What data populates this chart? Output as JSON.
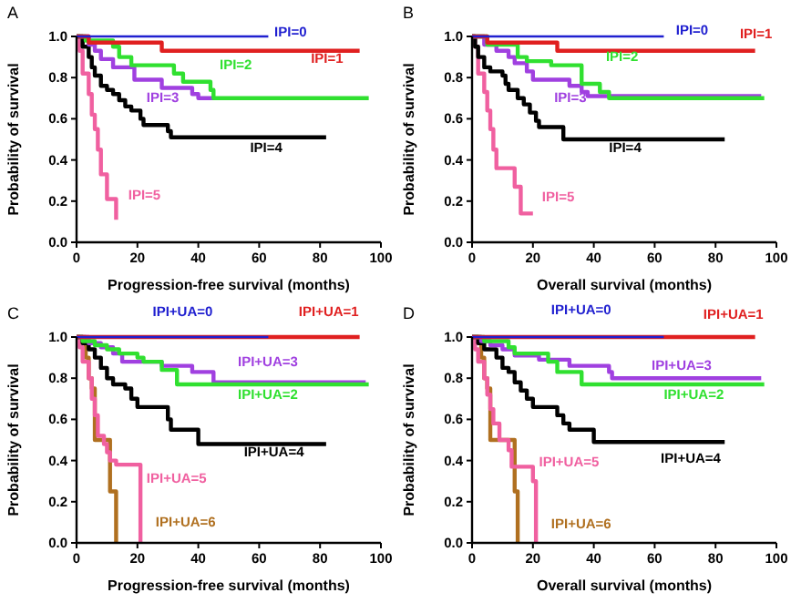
{
  "chart_data": [
    {
      "type": "step",
      "title": "A",
      "xlabel": "Progression-free survival (months)",
      "ylabel": "Probability of survival",
      "xlim": [
        0,
        100
      ],
      "ylim": [
        0,
        1
      ],
      "xticks": [
        0,
        20,
        40,
        60,
        80,
        100
      ],
      "yticks": [
        {
          "value": 0,
          "label": "0.0"
        },
        {
          "value": 0.2,
          "label": "0.2"
        },
        {
          "value": 0.4,
          "label": "0.4"
        },
        {
          "value": 0.6,
          "label": "0.6"
        },
        {
          "value": 0.8,
          "label": "0.8"
        },
        {
          "value": 1,
          "label": "1.0"
        }
      ],
      "series": [
        {
          "name": "IPI=0",
          "color": "#2020d0",
          "x": [
            0,
            63
          ],
          "values": [
            1,
            1
          ]
        },
        {
          "name": "IPI=1",
          "color": "#e02020",
          "x": [
            0,
            4,
            28,
            93
          ],
          "values": [
            1,
            0.97,
            0.93,
            0.93
          ]
        },
        {
          "name": "IPI=2",
          "color": "#30e030",
          "x": [
            0,
            3,
            12,
            14,
            18,
            32,
            35,
            44,
            45,
            96
          ],
          "values": [
            1,
            0.98,
            0.95,
            0.9,
            0.86,
            0.82,
            0.78,
            0.74,
            0.7,
            0.7
          ]
        },
        {
          "name": "IPI=3",
          "color": "#a040e0",
          "x": [
            0,
            4,
            6,
            8,
            12,
            19,
            28,
            38,
            40,
            45
          ],
          "values": [
            1,
            0.96,
            0.93,
            0.89,
            0.85,
            0.79,
            0.75,
            0.72,
            0.7,
            0.7
          ]
        },
        {
          "name": "IPI=4",
          "color": "#000000",
          "x": [
            0,
            2,
            4,
            5,
            6,
            8,
            10,
            12,
            14,
            16,
            18,
            21,
            22,
            30,
            31,
            82
          ],
          "values": [
            1,
            0.95,
            0.9,
            0.85,
            0.81,
            0.76,
            0.74,
            0.72,
            0.69,
            0.66,
            0.64,
            0.6,
            0.57,
            0.54,
            0.51,
            0.51
          ]
        },
        {
          "name": "IPI=5",
          "color": "#f060a0",
          "x": [
            0,
            1,
            2,
            4,
            5,
            6,
            7,
            8,
            10,
            13
          ],
          "values": [
            1,
            0.93,
            0.82,
            0.72,
            0.62,
            0.55,
            0.45,
            0.33,
            0.21,
            0.11
          ]
        }
      ]
    },
    {
      "type": "step",
      "title": "B",
      "xlabel": "Overall survival (months)",
      "ylabel": "Probability of survival",
      "xlim": [
        0,
        100
      ],
      "ylim": [
        0,
        1
      ],
      "xticks": [
        0,
        20,
        40,
        60,
        80,
        100
      ],
      "yticks": [
        {
          "value": 0,
          "label": "0.0"
        },
        {
          "value": 0.2,
          "label": "0.2"
        },
        {
          "value": 0.4,
          "label": "0.4"
        },
        {
          "value": 0.6,
          "label": "0.6"
        },
        {
          "value": 0.8,
          "label": "0.8"
        },
        {
          "value": 1,
          "label": "1.0"
        }
      ],
      "series": [
        {
          "name": "IPI=0",
          "color": "#2020d0",
          "x": [
            0,
            63
          ],
          "values": [
            1,
            1
          ]
        },
        {
          "name": "IPI=1",
          "color": "#e02020",
          "x": [
            0,
            5,
            28,
            93
          ],
          "values": [
            1,
            0.97,
            0.93,
            0.93
          ]
        },
        {
          "name": "IPI=2",
          "color": "#30e030",
          "x": [
            0,
            5,
            15,
            18,
            26,
            36,
            42,
            45,
            96
          ],
          "values": [
            1,
            0.96,
            0.9,
            0.88,
            0.86,
            0.77,
            0.73,
            0.7,
            0.7
          ]
        },
        {
          "name": "IPI=3",
          "color": "#a040e0",
          "x": [
            0,
            4,
            8,
            12,
            14,
            18,
            20,
            32,
            36,
            38,
            95
          ],
          "values": [
            1,
            0.96,
            0.93,
            0.9,
            0.87,
            0.83,
            0.79,
            0.76,
            0.73,
            0.71,
            0.71
          ]
        },
        {
          "name": "IPI=4",
          "color": "#000000",
          "x": [
            0,
            1,
            2,
            4,
            6,
            10,
            11,
            12,
            15,
            17,
            19,
            21,
            22,
            30,
            83
          ],
          "values": [
            1,
            0.95,
            0.9,
            0.85,
            0.83,
            0.81,
            0.77,
            0.74,
            0.7,
            0.67,
            0.63,
            0.59,
            0.56,
            0.5,
            0.5
          ]
        },
        {
          "name": "IPI=5",
          "color": "#f060a0",
          "x": [
            0,
            1,
            2,
            4,
            5,
            6,
            7,
            8,
            14,
            16,
            20
          ],
          "values": [
            1,
            0.95,
            0.82,
            0.73,
            0.64,
            0.55,
            0.45,
            0.36,
            0.27,
            0.14,
            0.14
          ]
        }
      ]
    },
    {
      "type": "step",
      "title": "C",
      "xlabel": "Progression-free survival (months)",
      "ylabel": "Probability of survival",
      "xlim": [
        0,
        100
      ],
      "ylim": [
        0,
        1
      ],
      "xticks": [
        0,
        20,
        40,
        60,
        80,
        100
      ],
      "yticks": [
        {
          "value": 0,
          "label": "0.0"
        },
        {
          "value": 0.2,
          "label": "0.2"
        },
        {
          "value": 0.4,
          "label": "0.4"
        },
        {
          "value": 0.6,
          "label": "0.6"
        },
        {
          "value": 0.8,
          "label": "0.8"
        },
        {
          "value": 1,
          "label": "1.0"
        }
      ],
      "series": [
        {
          "name": "IPI+UA=0",
          "color": "#2020d0",
          "x": [
            0,
            63
          ],
          "values": [
            1,
            1
          ]
        },
        {
          "name": "IPI+UA=1",
          "color": "#e02020",
          "x": [
            0,
            93
          ],
          "values": [
            1,
            1
          ]
        },
        {
          "name": "IPI+UA=2",
          "color": "#30e030",
          "x": [
            0,
            2,
            6,
            10,
            14,
            20,
            22,
            28,
            33,
            96
          ],
          "values": [
            1,
            0.98,
            0.96,
            0.94,
            0.92,
            0.9,
            0.88,
            0.84,
            0.77,
            0.77
          ]
        },
        {
          "name": "IPI+UA=3",
          "color": "#a040e0",
          "x": [
            0,
            4,
            8,
            12,
            15,
            28,
            38,
            45,
            95
          ],
          "values": [
            1,
            0.97,
            0.95,
            0.92,
            0.88,
            0.86,
            0.83,
            0.78,
            0.78
          ]
        },
        {
          "name": "IPI+UA=4",
          "color": "#000000",
          "x": [
            0,
            2,
            4,
            6,
            8,
            10,
            12,
            16,
            18,
            20,
            30,
            31,
            40,
            82
          ],
          "values": [
            1,
            0.97,
            0.94,
            0.9,
            0.85,
            0.8,
            0.77,
            0.75,
            0.7,
            0.66,
            0.6,
            0.55,
            0.48,
            0.48
          ]
        },
        {
          "name": "IPI+UA=5",
          "color": "#f060a0",
          "x": [
            0,
            1,
            2,
            4,
            5,
            6,
            7,
            9,
            10,
            11,
            13,
            21
          ],
          "values": [
            1,
            0.95,
            0.88,
            0.8,
            0.7,
            0.62,
            0.52,
            0.48,
            0.44,
            0.4,
            0.38,
            0
          ]
        },
        {
          "name": "IPI+UA=6",
          "color": "#b07020",
          "x": [
            0,
            3,
            4,
            5,
            6,
            11,
            13
          ],
          "values": [
            1,
            0.9,
            0.8,
            0.75,
            0.5,
            0.25,
            0
          ]
        }
      ]
    },
    {
      "type": "step",
      "title": "D",
      "xlabel": "Overall survival (months)",
      "ylabel": "Probability of survival",
      "xlim": [
        0,
        100
      ],
      "ylim": [
        0,
        1
      ],
      "xticks": [
        0,
        20,
        40,
        60,
        80,
        100
      ],
      "yticks": [
        {
          "value": 0,
          "label": "0.0"
        },
        {
          "value": 0.2,
          "label": "0.2"
        },
        {
          "value": 0.4,
          "label": "0.4"
        },
        {
          "value": 0.6,
          "label": "0.6"
        },
        {
          "value": 0.8,
          "label": "0.8"
        },
        {
          "value": 1,
          "label": "1.0"
        }
      ],
      "series": [
        {
          "name": "IPI+UA=0",
          "color": "#2020d0",
          "x": [
            0,
            63
          ],
          "values": [
            1,
            1
          ]
        },
        {
          "name": "IPI+UA=1",
          "color": "#e02020",
          "x": [
            0,
            93
          ],
          "values": [
            1,
            1
          ]
        },
        {
          "name": "IPI+UA=2",
          "color": "#30e030",
          "x": [
            0,
            4,
            12,
            14,
            25,
            28,
            36,
            96
          ],
          "values": [
            1,
            0.98,
            0.95,
            0.92,
            0.88,
            0.83,
            0.77,
            0.77
          ]
        },
        {
          "name": "IPI+UA=3",
          "color": "#a040e0",
          "x": [
            0,
            3,
            6,
            10,
            14,
            22,
            32,
            45,
            46,
            95
          ],
          "values": [
            1,
            0.98,
            0.96,
            0.94,
            0.91,
            0.89,
            0.86,
            0.83,
            0.8,
            0.8
          ]
        },
        {
          "name": "IPI+UA=4",
          "color": "#000000",
          "x": [
            0,
            2,
            4,
            8,
            10,
            12,
            14,
            16,
            18,
            20,
            28,
            30,
            32,
            40,
            83
          ],
          "values": [
            1,
            0.97,
            0.94,
            0.9,
            0.85,
            0.83,
            0.78,
            0.74,
            0.7,
            0.66,
            0.62,
            0.58,
            0.55,
            0.49,
            0.49
          ]
        },
        {
          "name": "IPI+UA=5",
          "color": "#f060a0",
          "x": [
            0,
            1,
            2,
            4,
            5,
            6,
            7,
            9,
            12,
            13,
            20,
            21
          ],
          "values": [
            1,
            0.94,
            0.88,
            0.8,
            0.72,
            0.65,
            0.58,
            0.5,
            0.45,
            0.37,
            0.3,
            0
          ]
        },
        {
          "name": "IPI+UA=6",
          "color": "#b07020",
          "x": [
            0,
            3,
            4,
            5,
            6,
            14,
            15
          ],
          "values": [
            1,
            0.9,
            0.8,
            0.75,
            0.5,
            0.25,
            0
          ]
        }
      ]
    }
  ]
}
